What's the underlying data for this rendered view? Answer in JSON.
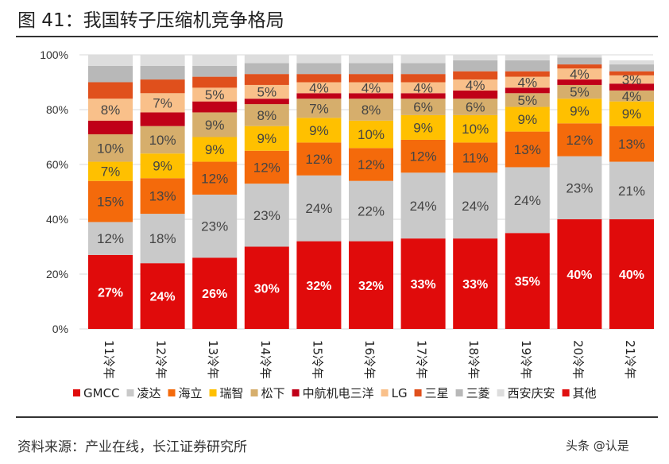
{
  "title": "图 41：我国转子压缩机竞争格局",
  "source": "资料来源：产业在线，长江证券研究所",
  "watermark": "头条 @认是",
  "chart_data": {
    "type": "bar",
    "stacked": true,
    "categories": [
      "11冷年",
      "12冷年",
      "13冷年",
      "14冷年",
      "15冷年",
      "16冷年",
      "17冷年",
      "18冷年",
      "19冷年",
      "20冷年",
      "21冷年"
    ],
    "yticks": [
      "0%",
      "20%",
      "40%",
      "60%",
      "80%",
      "100%"
    ],
    "ylim": [
      0,
      100
    ],
    "grid": true,
    "legend": "bottom",
    "series": [
      {
        "name": "GMCC",
        "color": "#e00b0b",
        "values": [
          27,
          24,
          26,
          30,
          32,
          32,
          33,
          33,
          35,
          40,
          40
        ],
        "show_labels": true
      },
      {
        "name": "凌达",
        "color": "#c9c9c9",
        "values": [
          12,
          18,
          23,
          23,
          24,
          22,
          24,
          24,
          24,
          23,
          21
        ],
        "show_labels": true
      },
      {
        "name": "海立",
        "color": "#f46a0b",
        "values": [
          15,
          13,
          12,
          12,
          12,
          12,
          12,
          11,
          13,
          12,
          13
        ],
        "show_labels": true
      },
      {
        "name": "瑞智",
        "color": "#ffc000",
        "values": [
          7,
          9,
          9,
          9,
          9,
          10,
          9,
          10,
          9,
          9,
          9
        ],
        "show_labels": true
      },
      {
        "name": "松下",
        "color": "#d6ae6c",
        "values": [
          10,
          10,
          9,
          8,
          7,
          8,
          6,
          6,
          5,
          5,
          4
        ],
        "show_labels": true
      },
      {
        "name": "中航机电三洋",
        "color": "#c00018",
        "values": [
          5,
          5,
          4,
          2,
          2,
          2,
          2,
          3,
          2,
          2,
          2.5
        ],
        "show_labels": false
      },
      {
        "name": "LG",
        "color": "#f9c08a",
        "values": [
          8,
          7,
          5,
          5,
          4,
          4,
          4,
          4,
          4,
          4,
          3
        ],
        "show_labels": true
      },
      {
        "name": "三星",
        "color": "#e0501c",
        "values": [
          6,
          5,
          4,
          4,
          3,
          3,
          3,
          3,
          2,
          1.5,
          1.5
        ],
        "show_labels": false
      },
      {
        "name": "三菱",
        "color": "#b8b8b8",
        "values": [
          6,
          5,
          4,
          4,
          4,
          4,
          4,
          4,
          4,
          2.5,
          2.5
        ],
        "show_labels": false
      },
      {
        "name": "西安庆安",
        "color": "#dddddd",
        "values": [
          4,
          4,
          4,
          3,
          3,
          3,
          3,
          2,
          2,
          1,
          1.5
        ],
        "show_labels": false
      },
      {
        "name": "其他",
        "color": "#e01010",
        "values": [
          0,
          0,
          0,
          0,
          0,
          0,
          0,
          0,
          0,
          0,
          0
        ],
        "show_labels": false
      }
    ]
  }
}
